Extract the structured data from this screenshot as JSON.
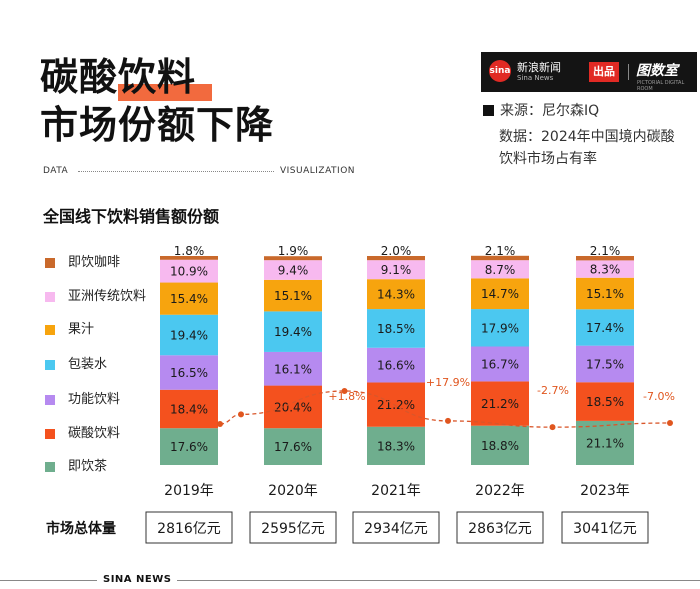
{
  "header": {
    "title_line1": "碳酸饮料",
    "title_line2": "市场份额下降",
    "dv_left": "DATA",
    "dv_right": "VISUALIZATION"
  },
  "brand": {
    "logo_text": "sina",
    "name": "新浪新闻",
    "sub": "Sina News",
    "tag": "出品",
    "right": "图数室",
    "right_sub": "PICTORIAL DIGITAL ROOM"
  },
  "source": {
    "line": "来源：尼尔森IQ",
    "note": "数据：2024年中国境内碳酸饮料市场占有率"
  },
  "footer": {
    "text": "SINA NEWS"
  },
  "colors": {
    "即饮咖啡": "#c9692b",
    "亚洲传统饮料": "#f7b9ef",
    "果汁": "#f7a40e",
    "包装水": "#4bc8f0",
    "功能饮料": "#b68af0",
    "碳酸饮料": "#f4511e",
    "即饮茶": "#6fae8e",
    "accent": "#f26a3e"
  },
  "chart_data": {
    "type": "bar",
    "stacked": true,
    "title": "全国线下饮料销售额份额",
    "categories": [
      "2019年",
      "2020年",
      "2021年",
      "2022年",
      "2023年"
    ],
    "legend_order": [
      "即饮咖啡",
      "亚洲传统饮料",
      "果汁",
      "包装水",
      "功能饮料",
      "碳酸饮料",
      "即饮茶"
    ],
    "series": [
      {
        "name": "即饮茶",
        "values": [
          17.6,
          17.6,
          18.3,
          18.8,
          21.1
        ]
      },
      {
        "name": "碳酸饮料",
        "values": [
          18.4,
          20.4,
          21.2,
          21.2,
          18.5
        ]
      },
      {
        "name": "功能饮料",
        "values": [
          16.5,
          16.1,
          16.6,
          16.7,
          17.5
        ]
      },
      {
        "name": "包装水",
        "values": [
          19.4,
          19.4,
          18.5,
          17.9,
          17.4
        ]
      },
      {
        "name": "果汁",
        "values": [
          15.4,
          15.1,
          14.3,
          14.7,
          15.1
        ]
      },
      {
        "name": "亚洲传统饮料",
        "values": [
          10.9,
          9.4,
          9.1,
          8.7,
          8.3
        ]
      },
      {
        "name": "即饮咖啡",
        "values": [
          1.8,
          1.9,
          2.0,
          2.1,
          2.1
        ]
      }
    ],
    "value_labels": {
      "即饮茶": [
        "17.6%",
        "17.6%",
        "18.3%",
        "18.8%",
        "21.1%"
      ],
      "碳酸饮料": [
        "18.4%",
        "20.4%",
        "21.2%",
        "21.2%",
        "18.5%"
      ],
      "功能饮料": [
        "16.5%",
        "16.1%",
        "16.6%",
        "16.7%",
        "17.5%"
      ],
      "包装水": [
        "19.4%",
        "19.4%",
        "18.5%",
        "17.9%",
        "17.4%"
      ],
      "果汁": [
        "15.4%",
        "15.1%",
        "14.3%",
        "14.7%",
        "15.1%"
      ],
      "亚洲传统饮料": [
        "10.9%",
        "9.4%",
        "9.1%",
        "8.7%",
        "8.3%"
      ],
      "即饮咖啡": [
        "1.8%",
        "1.9%",
        "2.0%",
        "2.1%",
        "2.1%"
      ]
    },
    "growth_trend": {
      "values": [
        1.8,
        17.9,
        -2.7,
        -7.0
      ],
      "labels": [
        "+1.8%",
        "+17.9%",
        "-2.7%",
        "-7.0%"
      ]
    },
    "totals_label": "市场总体量",
    "totals": [
      "2816亿元",
      "2595亿元",
      "2934亿元",
      "2863亿元",
      "3041亿元"
    ]
  }
}
